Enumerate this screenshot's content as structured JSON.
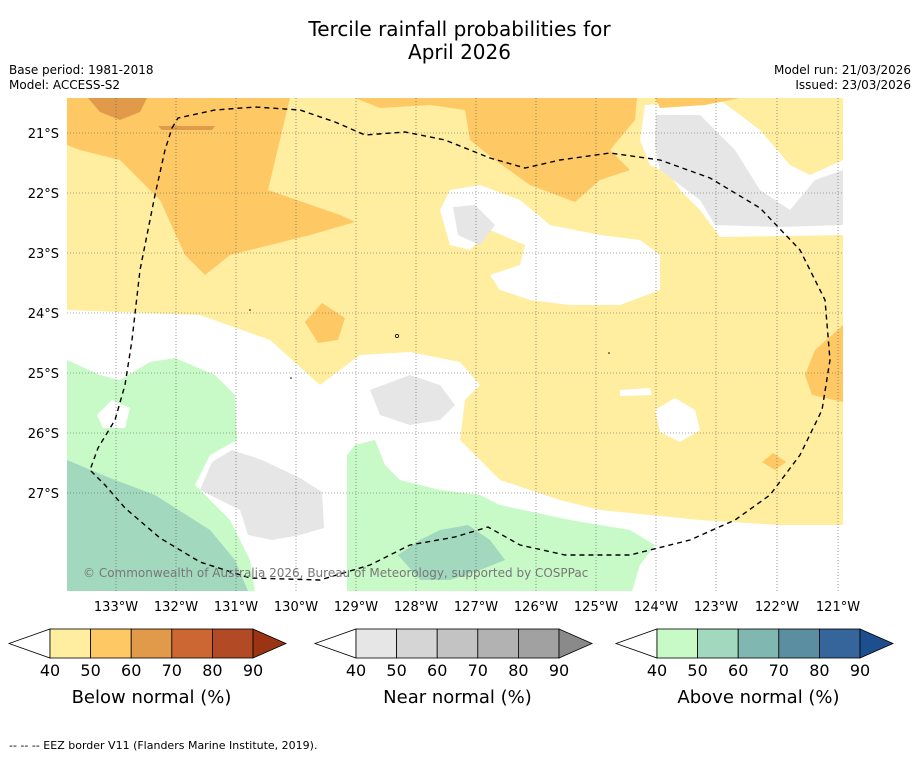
{
  "title": {
    "line1": "Tercile rainfall probabilities for",
    "line2": "April 2026"
  },
  "info_left": {
    "base_period": "Base period: 1981-2018",
    "model": "Model: ACCESS-S2"
  },
  "info_right": {
    "model_run": "Model run: 21/03/2026",
    "issued": "Issued: 23/03/2026"
  },
  "map": {
    "lat_labels": [
      "21°S",
      "22°S",
      "23°S",
      "24°S",
      "25°S",
      "26°S",
      "27°S"
    ],
    "lon_labels": [
      "133°W",
      "132°W",
      "131°W",
      "130°W",
      "129°W",
      "128°W",
      "127°W",
      "126°W",
      "125°W",
      "124°W",
      "123°W",
      "122°W",
      "121°W"
    ],
    "copyright": "© Commonwealth of Australia 2026, Bureau of Meteorology, supported by COSPPac",
    "colors": {
      "below_40": "#ffeda0",
      "below_50": "#fec965",
      "below_60": "#e09a4a",
      "near_40": "#e6e6e6",
      "above_40": "#c8fac8",
      "above_50": "#a2d8bd",
      "none": "#ffffff"
    }
  },
  "legends": [
    {
      "label": "Below normal (%)",
      "ticks": [
        "40",
        "50",
        "60",
        "70",
        "80",
        "90"
      ],
      "colors": [
        "#ffeda0",
        "#fec965",
        "#e09a4a",
        "#cc6633",
        "#b14a25",
        "#9a3412"
      ]
    },
    {
      "label": "Near normal (%)",
      "ticks": [
        "40",
        "50",
        "60",
        "70",
        "80",
        "90"
      ],
      "colors": [
        "#e6e6e6",
        "#d5d5d5",
        "#c3c3c3",
        "#b2b2b2",
        "#a1a1a1",
        "#8a8a8a"
      ]
    },
    {
      "label": "Above normal (%)",
      "ticks": [
        "40",
        "50",
        "60",
        "70",
        "80",
        "90"
      ],
      "colors": [
        "#c8fac8",
        "#a2d8bd",
        "#81b7b1",
        "#5b8ea0",
        "#35659a",
        "#1d4f8f"
      ]
    }
  ],
  "footer": "--  --  -- EEZ border V11 (Flanders Marine Institute, 2019)."
}
